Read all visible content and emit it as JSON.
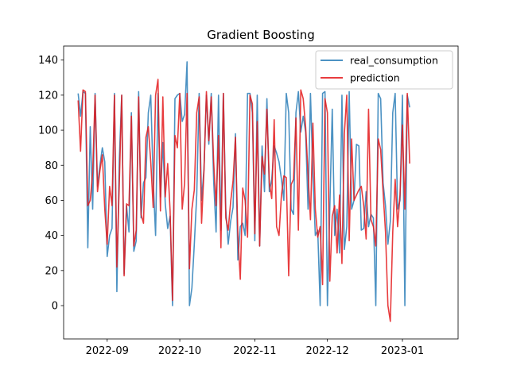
{
  "chart_data": {
    "type": "line",
    "title": "Gradient Boosting",
    "xlabel": "",
    "ylabel": "",
    "x_start": "2022-08-20",
    "x_step_days": 1,
    "xlim": [
      "2022-08-14",
      "2023-01-24"
    ],
    "ylim": [
      -19,
      148
    ],
    "yticks": [
      0,
      20,
      40,
      60,
      80,
      100,
      120,
      140
    ],
    "xticks": [
      {
        "date": "2022-09-01",
        "label": "2022-09"
      },
      {
        "date": "2022-10-01",
        "label": "2022-10"
      },
      {
        "date": "2022-11-01",
        "label": "2022-11"
      },
      {
        "date": "2022-12-01",
        "label": "2022-12"
      },
      {
        "date": "2023-01-01",
        "label": "2023-01"
      }
    ],
    "grid": false,
    "legend_position": "top-right",
    "series": [
      {
        "name": "real_consumption",
        "color": "#1f77b4",
        "values": [
          121,
          108,
          122,
          121,
          33,
          102,
          55,
          121,
          68,
          80,
          90,
          82,
          28,
          40,
          44,
          121,
          8,
          83,
          120,
          18,
          57,
          42,
          110,
          31,
          37,
          122,
          50,
          70,
          73,
          110,
          120,
          72,
          40,
          121,
          62,
          93,
          58,
          44,
          51,
          0,
          118,
          120,
          121,
          105,
          109,
          139,
          0,
          10,
          35,
          63,
          121,
          60,
          78,
          120,
          92,
          121,
          71,
          42,
          120,
          43,
          121,
          55,
          35,
          48,
          56,
          98,
          26,
          45,
          47,
          40,
          121,
          121,
          110,
          37,
          120,
          34,
          91,
          65,
          118,
          65,
          72,
          91,
          87,
          82,
          72,
          60,
          121,
          110,
          55,
          52,
          110,
          122,
          99,
          108,
          99,
          55,
          121,
          75,
          40,
          43,
          0,
          121,
          122,
          0,
          56,
          112,
          40,
          55,
          30,
          120,
          32,
          45,
          122,
          55,
          60,
          92,
          91,
          43,
          44,
          65,
          45,
          52,
          50,
          0,
          121,
          118,
          70,
          57,
          35,
          48,
          110,
          121,
          55,
          60,
          120,
          0,
          120,
          113
        ]
      },
      {
        "name": "prediction",
        "color": "#e41a1c",
        "values": [
          117,
          88,
          123,
          122,
          57,
          60,
          76,
          120,
          65,
          77,
          86,
          55,
          35,
          68,
          57,
          120,
          22,
          69,
          120,
          17,
          58,
          57,
          108,
          34,
          43,
          119,
          52,
          47,
          96,
          102,
          82,
          56,
          120,
          129,
          54,
          119,
          62,
          81,
          54,
          3,
          97,
          90,
          121,
          55,
          70,
          121,
          21,
          55,
          66,
          110,
          119,
          47,
          77,
          122,
          94,
          119,
          82,
          57,
          97,
          33,
          121,
          50,
          43,
          59,
          71,
          96,
          40,
          15,
          67,
          60,
          39,
          120,
          115,
          41,
          105,
          34,
          85,
          75,
          112,
          70,
          61,
          106,
          45,
          40,
          63,
          74,
          73,
          17,
          69,
          72,
          107,
          43,
          123,
          118,
          102,
          75,
          49,
          104,
          55,
          39,
          45,
          12,
          118,
          110,
          14,
          51,
          57,
          30,
          63,
          24,
          98,
          120,
          37,
          95,
          60,
          63,
          66,
          68,
          57,
          38,
          112,
          49,
          45,
          34,
          95,
          89,
          65,
          42,
          0,
          -9,
          42,
          72,
          45,
          63,
          103,
          55,
          121,
          81
        ]
      }
    ]
  }
}
